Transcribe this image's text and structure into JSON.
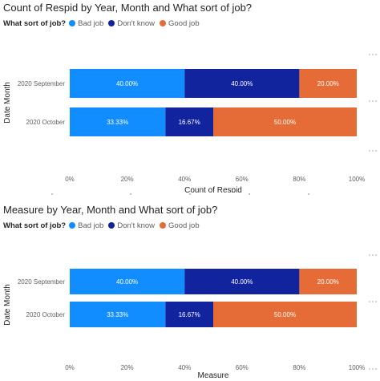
{
  "legend": {
    "title": "What sort of job?",
    "items": [
      {
        "label": "Bad job",
        "color": "#118DFF"
      },
      {
        "label": "Don't know",
        "color": "#12239E"
      },
      {
        "label": "Good job",
        "color": "#E66C37"
      }
    ]
  },
  "chart_data": [
    {
      "type": "bar",
      "orientation": "horizontal",
      "stacked": "100%",
      "title": "Count of Respid by Year, Month and What sort of job?",
      "xlabel": "Count of Respid",
      "ylabel": "Date Month",
      "categories": [
        "2020 September",
        "2020 October"
      ],
      "series": [
        {
          "name": "Bad job",
          "color": "#118DFF",
          "values": [
            40.0,
            33.33
          ],
          "labels": [
            "40.00%",
            "33.33%"
          ]
        },
        {
          "name": "Don't know",
          "color": "#12239E",
          "values": [
            40.0,
            16.67
          ],
          "labels": [
            "40.00%",
            "16.67%"
          ]
        },
        {
          "name": "Good job",
          "color": "#E66C37",
          "values": [
            20.0,
            50.0
          ],
          "labels": [
            "20.00%",
            "50.00%"
          ]
        }
      ],
      "xticks": [
        "0%",
        "20%",
        "40%",
        "60%",
        "80%",
        "100%"
      ],
      "xlim": [
        0,
        100
      ],
      "grid": false,
      "legend_position": "top-left"
    },
    {
      "type": "bar",
      "orientation": "horizontal",
      "stacked": "100%",
      "title": "Measure by Year, Month and What sort of job?",
      "xlabel": "Measure",
      "ylabel": "Date Month",
      "categories": [
        "2020 September",
        "2020 October"
      ],
      "series": [
        {
          "name": "Bad job",
          "color": "#118DFF",
          "values": [
            40.0,
            33.33
          ],
          "labels": [
            "40.00%",
            "33.33%"
          ]
        },
        {
          "name": "Don't know",
          "color": "#12239E",
          "values": [
            40.0,
            16.67
          ],
          "labels": [
            "40.00%",
            "16.67%"
          ]
        },
        {
          "name": "Good job",
          "color": "#E66C37",
          "values": [
            20.0,
            50.0
          ],
          "labels": [
            "20.00%",
            "50.00%"
          ]
        }
      ],
      "xticks": [
        "0%",
        "20%",
        "40%",
        "60%",
        "80%",
        "100%"
      ],
      "xlim": [
        0,
        100
      ],
      "grid": false,
      "legend_position": "top-left"
    }
  ]
}
